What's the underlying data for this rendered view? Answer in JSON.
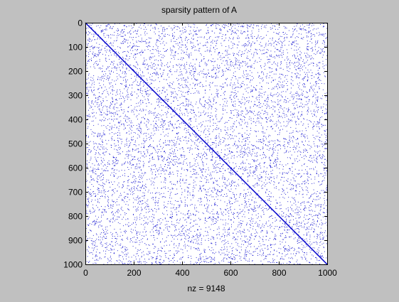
{
  "chart_data": {
    "type": "scatter",
    "title": "sparsity pattern of A",
    "xlabel": "nz = 9148",
    "ylabel": "",
    "xlim": [
      0,
      1000
    ],
    "ylim": [
      0,
      1000
    ],
    "y_axis_direction": "reversed (0 at top)",
    "x_ticks": [
      "0",
      "200",
      "400",
      "600",
      "800",
      "1000"
    ],
    "y_ticks": [
      "0",
      "100",
      "200",
      "300",
      "400",
      "500",
      "600",
      "700",
      "800",
      "900",
      "1000"
    ],
    "matrix_size": [
      1000,
      1000
    ],
    "nonzeros": 9148,
    "structure": "full main diagonal (1000 entries) plus randomly scattered off-diagonal entries",
    "marker_color": "#0000cc",
    "axes_background": "#ffffff",
    "figure_background": "#c0c0c0",
    "grid": false,
    "legend": "none"
  }
}
